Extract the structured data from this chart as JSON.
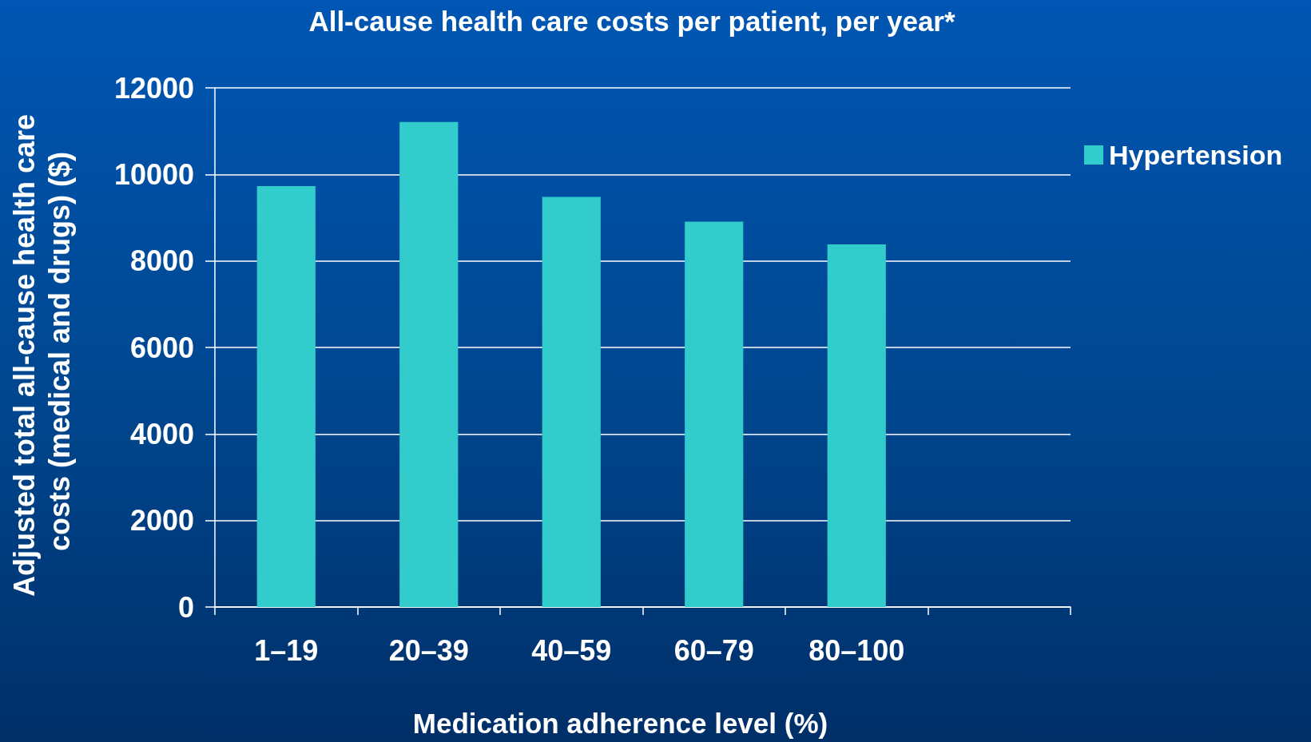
{
  "chart_data": {
    "type": "bar",
    "title": "All-cause health care costs per patient, per year*",
    "xlabel": "Medication adherence level (%)",
    "ylabel": "Adjusted total all-cause health care costs (medical and drugs) ($)",
    "categories": [
      "1–19",
      "20–39",
      "40–59",
      "60–79",
      "80–100",
      null
    ],
    "series": [
      {
        "name": "Hypertension",
        "color": "#33cccc",
        "values": [
          9730,
          11210,
          9480,
          8910,
          8380,
          null
        ]
      }
    ],
    "ylim": [
      0,
      12000
    ],
    "yticks": [
      0,
      2000,
      4000,
      6000,
      8000,
      10000,
      12000
    ],
    "grid": "y",
    "legend": "right"
  }
}
